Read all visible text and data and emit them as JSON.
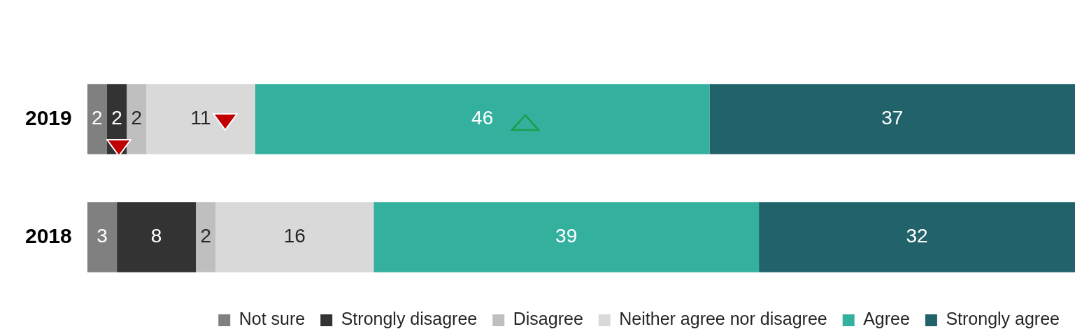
{
  "chart_data": {
    "type": "bar",
    "orientation": "horizontal",
    "stacked": true,
    "categories": [
      "2019",
      "2018"
    ],
    "series": [
      {
        "name": "Not sure",
        "color": "#808080",
        "values": [
          2,
          3
        ]
      },
      {
        "name": "Strongly disagree",
        "color": "#333333",
        "values": [
          2,
          8
        ]
      },
      {
        "name": "Disagree",
        "color": "#bfbfbf",
        "values": [
          2,
          2
        ]
      },
      {
        "name": "Neither agree nor disagree",
        "color": "#d9d9d9",
        "values": [
          11,
          16
        ]
      },
      {
        "name": "Agree",
        "color": "#34b09f",
        "values": [
          46,
          39
        ]
      },
      {
        "name": "Strongly agree",
        "color": "#22626b",
        "values": [
          37,
          32
        ]
      }
    ],
    "xlim": [
      0,
      100
    ],
    "data_labels": true,
    "legend": "bottom",
    "grid": false,
    "tick_labels": "y"
  }
}
